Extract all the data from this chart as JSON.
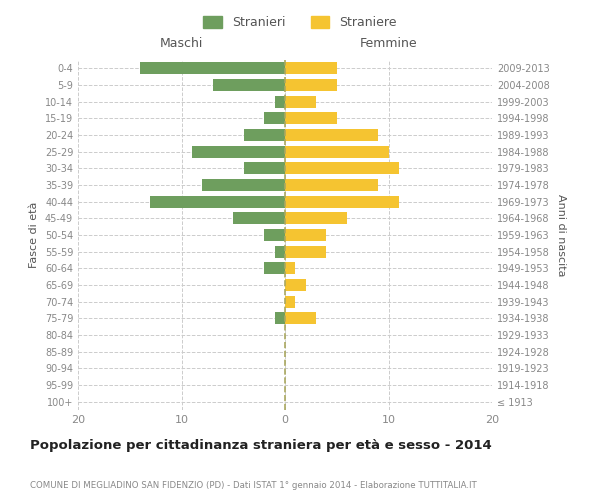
{
  "age_groups": [
    "100+",
    "95-99",
    "90-94",
    "85-89",
    "80-84",
    "75-79",
    "70-74",
    "65-69",
    "60-64",
    "55-59",
    "50-54",
    "45-49",
    "40-44",
    "35-39",
    "30-34",
    "25-29",
    "20-24",
    "15-19",
    "10-14",
    "5-9",
    "0-4"
  ],
  "birth_years": [
    "≤ 1913",
    "1914-1918",
    "1919-1923",
    "1924-1928",
    "1929-1933",
    "1934-1938",
    "1939-1943",
    "1944-1948",
    "1949-1953",
    "1954-1958",
    "1959-1963",
    "1964-1968",
    "1969-1973",
    "1974-1978",
    "1979-1983",
    "1984-1988",
    "1989-1993",
    "1994-1998",
    "1999-2003",
    "2004-2008",
    "2009-2013"
  ],
  "maschi": [
    0,
    0,
    0,
    0,
    0,
    1,
    0,
    0,
    2,
    1,
    2,
    5,
    13,
    8,
    4,
    9,
    4,
    2,
    1,
    7,
    14
  ],
  "femmine": [
    0,
    0,
    0,
    0,
    0,
    3,
    1,
    2,
    1,
    4,
    4,
    6,
    11,
    9,
    11,
    10,
    9,
    5,
    3,
    5,
    5
  ],
  "color_maschi": "#6e9e5e",
  "color_femmine": "#f5c431",
  "title": "Popolazione per cittadinanza straniera per età e sesso - 2014",
  "subtitle": "COMUNE DI MEGLIADINO SAN FIDENZIO (PD) - Dati ISTAT 1° gennaio 2014 - Elaborazione TUTTITALIA.IT",
  "ylabel_left": "Fasce di età",
  "ylabel_right": "Anni di nascita",
  "xlabel_maschi": "Maschi",
  "xlabel_femmine": "Femmine",
  "legend_maschi": "Stranieri",
  "legend_femmine": "Straniere",
  "xlim": 20,
  "background_color": "#ffffff",
  "grid_color": "#cccccc",
  "axis_label_color": "#555555",
  "tick_label_color": "#888888",
  "title_color": "#222222",
  "subtitle_color": "#888888"
}
